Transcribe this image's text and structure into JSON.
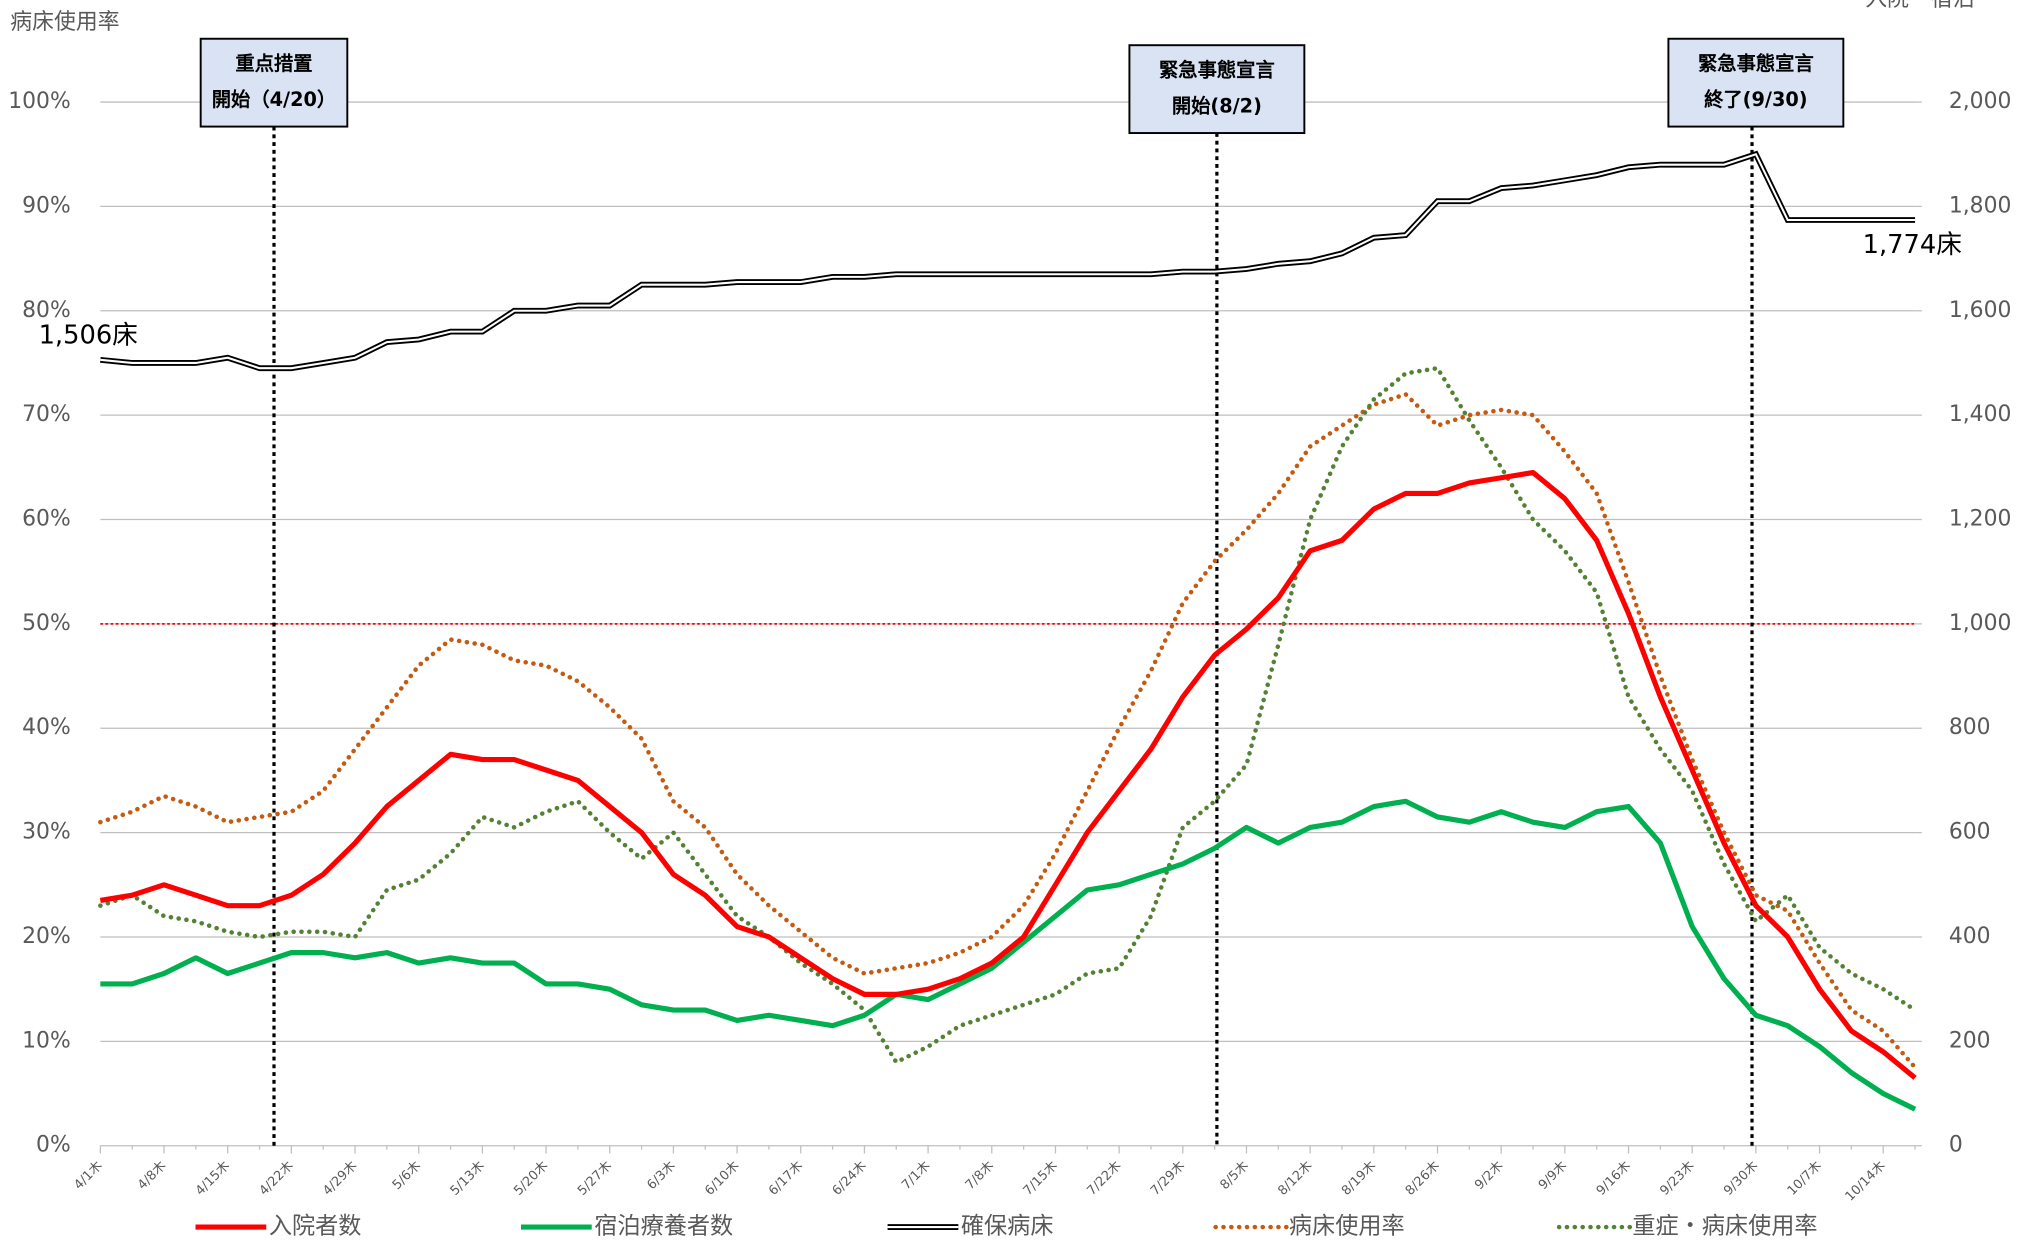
{
  "chart_data": {
    "type": "line",
    "y_label": "病床使用率",
    "y2_label": "入院・宿泊",
    "categories": [
      "4/1木",
      null,
      "4/8木",
      null,
      "4/15木",
      null,
      "4/22木",
      null,
      "4/29木",
      null,
      "5/6木",
      null,
      "5/13木",
      null,
      "5/20木",
      null,
      "5/27木",
      null,
      "6/3木",
      null,
      "6/10木",
      null,
      "6/17木",
      null,
      "6/24木",
      null,
      "7/1木",
      null,
      "7/8木",
      null,
      "7/15木",
      null,
      "7/22木",
      null,
      "7/29木",
      null,
      "8/5木",
      null,
      "8/12木",
      null,
      "8/19木",
      null,
      "8/26木",
      null,
      "9/2木",
      null,
      "9/9木",
      null,
      "9/16木",
      null,
      "9/23木",
      null,
      "9/30木",
      null,
      "10/7木",
      null,
      "10/14木",
      null
    ],
    "series": [
      {
        "name": "入院者数",
        "color": "#ff0000",
        "style": "solid",
        "axis": "y2",
        "values": [
          470,
          480,
          500,
          480,
          460,
          460,
          480,
          520,
          580,
          650,
          700,
          750,
          740,
          740,
          720,
          700,
          650,
          600,
          520,
          480,
          420,
          400,
          360,
          320,
          290,
          290,
          300,
          320,
          350,
          400,
          500,
          600,
          680,
          760,
          860,
          940,
          990,
          1050,
          1140,
          1160,
          1220,
          1250,
          1250,
          1270,
          1280,
          1290,
          1240,
          1160,
          1020,
          860,
          720,
          580,
          460,
          400,
          300,
          220,
          180,
          130
        ]
      },
      {
        "name": "宿泊療養者数",
        "color": "#00b050",
        "style": "solid",
        "axis": "y2",
        "values": [
          310,
          310,
          330,
          360,
          330,
          350,
          370,
          370,
          360,
          370,
          350,
          360,
          350,
          350,
          310,
          310,
          300,
          270,
          260,
          260,
          240,
          250,
          240,
          230,
          250,
          290,
          280,
          310,
          340,
          390,
          440,
          490,
          500,
          520,
          540,
          570,
          610,
          580,
          610,
          620,
          650,
          660,
          630,
          620,
          640,
          620,
          610,
          640,
          650,
          580,
          420,
          320,
          250,
          230,
          190,
          140,
          100,
          70
        ]
      },
      {
        "name": "確保病床",
        "color": "#000000",
        "style": "double",
        "axis": "y2",
        "values": [
          1506,
          1500,
          1500,
          1500,
          1510,
          1490,
          1490,
          1500,
          1510,
          1540,
          1545,
          1560,
          1560,
          1600,
          1600,
          1610,
          1610,
          1650,
          1650,
          1650,
          1655,
          1655,
          1655,
          1665,
          1665,
          1670,
          1670,
          1670,
          1670,
          1670,
          1670,
          1670,
          1670,
          1670,
          1675,
          1675,
          1680,
          1690,
          1695,
          1710,
          1740,
          1745,
          1810,
          1810,
          1835,
          1840,
          1850,
          1860,
          1875,
          1880,
          1880,
          1880,
          1900,
          1774,
          1774,
          1774,
          1774,
          1774
        ]
      },
      {
        "name": "病床使用率",
        "color": "#c55a11",
        "style": "dotted",
        "values": [
          31,
          32,
          33.5,
          32.5,
          31,
          31.5,
          32,
          34,
          38,
          42,
          46,
          48.5,
          48,
          46.5,
          46,
          44.5,
          42,
          39,
          33,
          30.5,
          26,
          23,
          20.5,
          18,
          16.5,
          17,
          17.5,
          18.5,
          20,
          23,
          28,
          34,
          40,
          45.5,
          52,
          56,
          59,
          62.5,
          67,
          69,
          71,
          72,
          69,
          70,
          70.5,
          70,
          66.5,
          62.5,
          54,
          45,
          37,
          30,
          24,
          22.5,
          17.5,
          13,
          11,
          7.5
        ]
      },
      {
        "name": "重症・病床使用率",
        "color": "#548235",
        "style": "dotted",
        "values": [
          23,
          24,
          22,
          21.5,
          20.5,
          20,
          20.5,
          20.5,
          20,
          24.5,
          25.5,
          28,
          31.5,
          30.5,
          32,
          33,
          30,
          27.5,
          30,
          26,
          22,
          20,
          17.5,
          15.5,
          13,
          8,
          9.5,
          11.5,
          12.5,
          13.5,
          14.5,
          16.5,
          17,
          22,
          30.5,
          33,
          36.5,
          48,
          60,
          67,
          71.5,
          74,
          74.5,
          69.5,
          65,
          60,
          57,
          53,
          43,
          38,
          34,
          27,
          21.5,
          24,
          19,
          16.5,
          15,
          13
        ]
      }
    ],
    "ylim": [
      0,
      100
    ],
    "yticks": [
      {
        "value": 0,
        "label": "0%"
      },
      {
        "value": 10,
        "label": "10%"
      },
      {
        "value": 20,
        "label": "20%"
      },
      {
        "value": 30,
        "label": "30%"
      },
      {
        "value": 40,
        "label": "40%"
      },
      {
        "value": 50,
        "label": "50%"
      },
      {
        "value": 60,
        "label": "60%"
      },
      {
        "value": 70,
        "label": "70%"
      },
      {
        "value": 80,
        "label": "80%"
      },
      {
        "value": 90,
        "label": "90%"
      },
      {
        "value": 100,
        "label": "100%"
      }
    ],
    "y2lim": [
      0,
      2000
    ],
    "y2ticks": [
      0,
      200,
      400,
      600,
      800,
      {
        "value": 1000,
        "label": "1,000"
      },
      {
        "value": 1200,
        "label": "1,200"
      },
      {
        "value": 1400,
        "label": "1,400"
      },
      {
        "value": 1600,
        "label": "1,600"
      },
      {
        "value": 1800,
        "label": "1,800"
      },
      {
        "value": 2000,
        "label": "2,000"
      }
    ],
    "grid": true,
    "hline": {
      "value": 50,
      "color": "#ff0000"
    },
    "bed_labels": [
      "1,506床",
      "1,774床"
    ],
    "annotations": [
      [
        "重点措置",
        "開始（4/20）"
      ],
      [
        "緊急事態宣言",
        "開始(8/2)"
      ],
      [
        "緊急事態宣言",
        "終了(9/30)"
      ]
    ],
    "legend": "bottom"
  }
}
